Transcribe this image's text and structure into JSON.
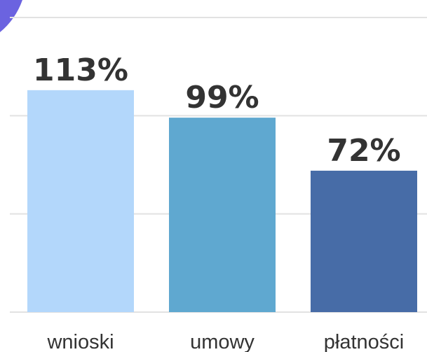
{
  "chart_data": {
    "type": "bar",
    "categories": [
      "wnioski",
      "umowy",
      "płatności"
    ],
    "values": [
      113,
      99,
      72
    ],
    "value_labels": [
      "113%",
      "99%",
      "72%"
    ],
    "colors": [
      "#b3d7fb",
      "#5fa8d0",
      "#476ca7"
    ],
    "ylim": [
      0,
      150
    ],
    "yticks": [
      0,
      50,
      100,
      150
    ],
    "grid": true
  }
}
